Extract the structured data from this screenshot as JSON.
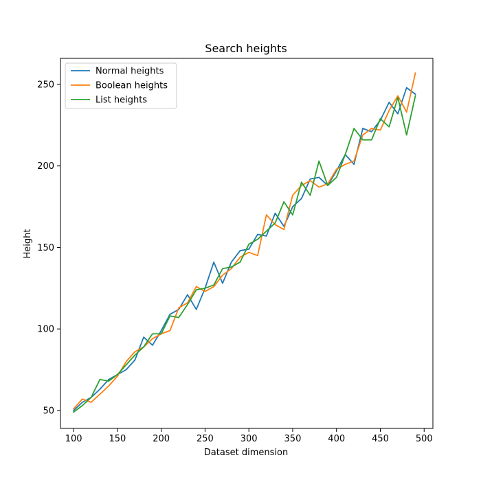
{
  "chart_data": {
    "type": "line",
    "title": "Search heights",
    "xlabel": "Dataset dimension",
    "ylabel": "Height",
    "xlim": [
      85,
      510
    ],
    "ylim": [
      39,
      266
    ],
    "xticks": [
      100,
      150,
      200,
      250,
      300,
      350,
      400,
      450,
      500
    ],
    "yticks": [
      50,
      100,
      150,
      200,
      250
    ],
    "grid": false,
    "legend_position": "top-left",
    "x": [
      100,
      110,
      120,
      130,
      140,
      150,
      160,
      170,
      180,
      190,
      200,
      210,
      220,
      230,
      240,
      250,
      260,
      270,
      280,
      290,
      300,
      310,
      320,
      330,
      340,
      350,
      360,
      370,
      380,
      390,
      400,
      410,
      420,
      430,
      440,
      450,
      460,
      470,
      480,
      490
    ],
    "series": [
      {
        "name": "Normal heights",
        "color": "#1f77b4",
        "values": [
          50,
          55,
          58,
          63,
          69,
          72,
          75,
          81,
          95,
          90,
          99,
          109,
          112,
          121,
          112,
          125,
          141,
          128,
          141,
          148,
          149,
          158,
          157,
          171,
          163,
          175,
          180,
          192,
          193,
          188,
          197,
          207,
          201,
          223,
          221,
          228,
          239,
          232,
          248,
          244
        ]
      },
      {
        "name": "Boolean heights",
        "color": "#ff7f0e",
        "values": [
          51,
          57,
          55,
          60,
          65,
          71,
          80,
          86,
          89,
          94,
          97,
          99,
          113,
          116,
          126,
          123,
          126,
          133,
          137,
          144,
          147,
          145,
          170,
          164,
          161,
          182,
          188,
          191,
          187,
          189,
          198,
          201,
          203,
          219,
          223,
          222,
          234,
          243,
          233,
          257
        ]
      },
      {
        "name": "List heights",
        "color": "#2ca02c",
        "values": [
          49,
          53,
          58,
          69,
          68,
          72,
          78,
          84,
          89,
          97,
          97,
          108,
          107,
          115,
          124,
          125,
          127,
          137,
          138,
          141,
          152,
          155,
          160,
          165,
          178,
          170,
          190,
          182,
          203,
          188,
          193,
          207,
          223,
          216,
          216,
          229,
          224,
          242,
          219,
          243
        ]
      }
    ]
  }
}
